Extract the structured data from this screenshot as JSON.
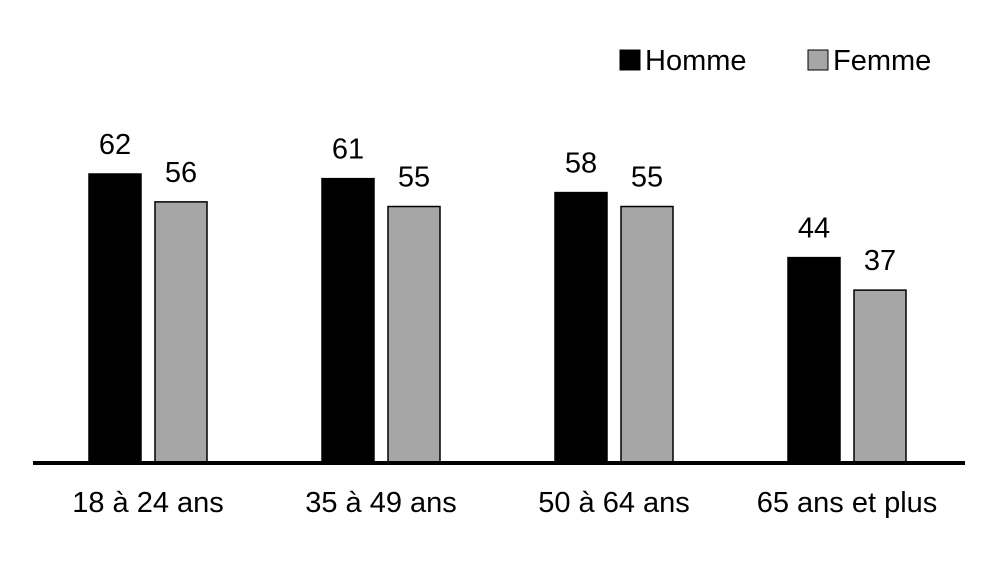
{
  "chart_data": {
    "type": "bar",
    "categories": [
      "18 à 24 ans",
      "35 à 49 ans",
      "50 à 64 ans",
      "65 ans et plus"
    ],
    "series": [
      {
        "name": "Homme",
        "values": [
          62,
          61,
          58,
          44
        ],
        "color": "#000000"
      },
      {
        "name": "Femme",
        "values": [
          56,
          55,
          55,
          37
        ],
        "color": "#a6a6a6"
      }
    ],
    "ylim": [
      0,
      62
    ],
    "grid": false,
    "legend": "top-right",
    "data_labels": true
  }
}
